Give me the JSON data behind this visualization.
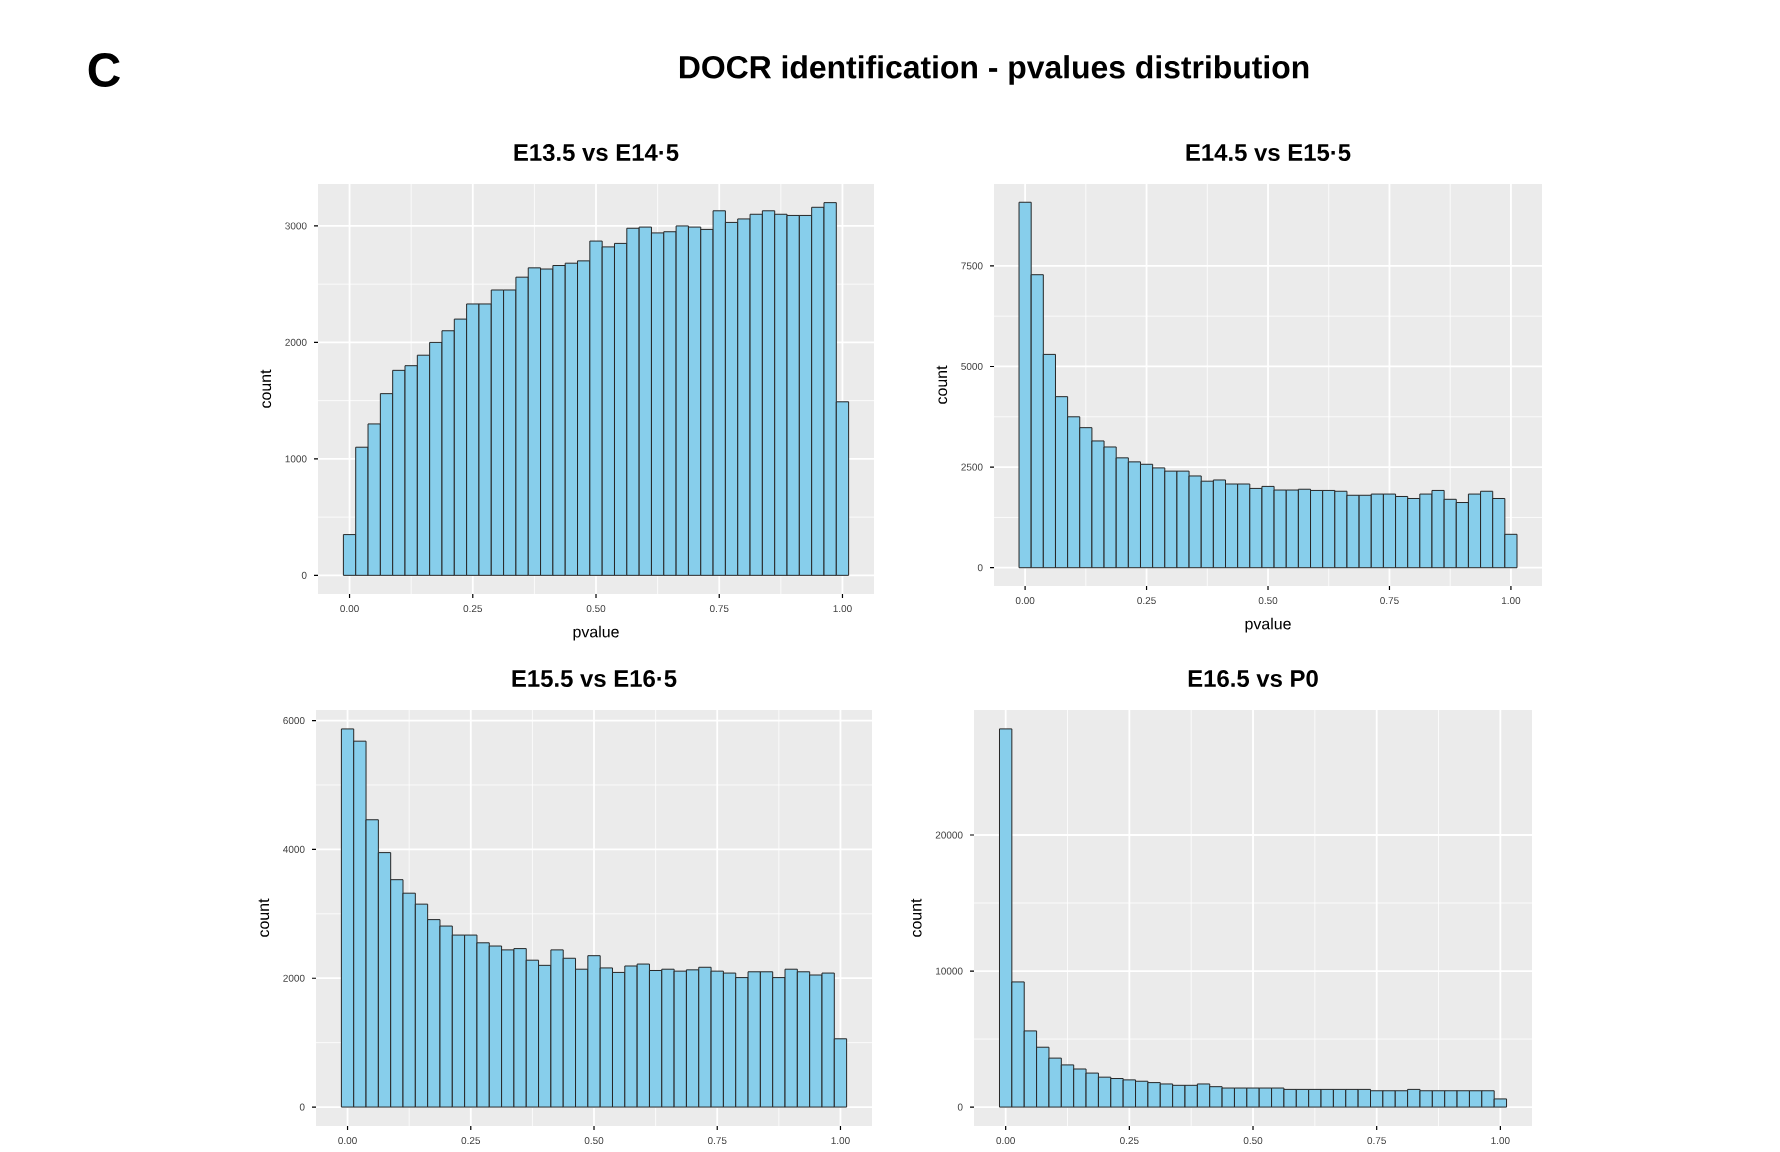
{
  "chart_data": [
    {
      "type": "other",
      "title": "DOCR identification - pvalues distribution",
      "annotations": [
        "C"
      ]
    },
    {
      "type": "histogram",
      "title": "E13.5 vs E14·5",
      "xlabel": "pvalue",
      "ylabel": "count",
      "color": "#87ceeb",
      "grid": true,
      "bins": [
        -0.0125,
        0.0125,
        0.0375,
        0.0625,
        0.0875,
        0.1125,
        0.1375,
        0.1625,
        0.1875,
        0.2125,
        0.2375,
        0.2625,
        0.2875,
        0.3125,
        0.3375,
        0.3625,
        0.3875,
        0.4125,
        0.4375,
        0.4625,
        0.4875,
        0.5125,
        0.5375,
        0.5625,
        0.5875,
        0.6125,
        0.6375,
        0.6625,
        0.6875,
        0.7125,
        0.7375,
        0.7625,
        0.7875,
        0.8125,
        0.8375,
        0.8625,
        0.8875,
        0.9125,
        0.9375,
        0.9625,
        0.9875,
        1.0125
      ],
      "values": [
        350,
        1100,
        1300,
        1560,
        1760,
        1800,
        1890,
        2000,
        2100,
        2200,
        2330,
        2330,
        2450,
        2450,
        2560,
        2640,
        2630,
        2660,
        2680,
        2700,
        2870,
        2820,
        2850,
        2980,
        2990,
        2940,
        2950,
        3000,
        2990,
        2970,
        3130,
        3030,
        3060,
        3100,
        3130,
        3100,
        3090,
        3090,
        3160,
        3200,
        1490
      ],
      "xlim": [
        -0.064,
        1.064
      ],
      "ylim": [
        -160,
        3360
      ],
      "xticks": [
        {
          "value": 0,
          "label": "0.00"
        },
        {
          "value": 0.25,
          "label": "0.25"
        },
        {
          "value": 0.5,
          "label": "0.50"
        },
        {
          "value": 0.75,
          "label": "0.75"
        },
        {
          "value": 1,
          "label": "1.00"
        }
      ],
      "yticks": [
        0,
        1000,
        2000,
        3000
      ]
    },
    {
      "type": "histogram",
      "title": "E14.5 vs E15·5",
      "xlabel": "pvalue",
      "ylabel": "count",
      "color": "#87ceeb",
      "grid": true,
      "bins": [
        -0.0125,
        0.0125,
        0.0375,
        0.0625,
        0.0875,
        0.1125,
        0.1375,
        0.1625,
        0.1875,
        0.2125,
        0.2375,
        0.2625,
        0.2875,
        0.3125,
        0.3375,
        0.3625,
        0.3875,
        0.4125,
        0.4375,
        0.4625,
        0.4875,
        0.5125,
        0.5375,
        0.5625,
        0.5875,
        0.6125,
        0.6375,
        0.6625,
        0.6875,
        0.7125,
        0.7375,
        0.7625,
        0.7875,
        0.8125,
        0.8375,
        0.8625,
        0.8875,
        0.9125,
        0.9375,
        0.9625,
        0.9875,
        1.0125
      ],
      "values": [
        9080,
        7280,
        5300,
        4250,
        3750,
        3480,
        3150,
        3000,
        2730,
        2630,
        2570,
        2480,
        2400,
        2400,
        2280,
        2150,
        2180,
        2080,
        2080,
        1970,
        2020,
        1930,
        1930,
        1950,
        1920,
        1920,
        1900,
        1800,
        1800,
        1830,
        1830,
        1770,
        1720,
        1830,
        1920,
        1700,
        1620,
        1830,
        1900,
        1720,
        830
      ],
      "xlim": [
        -0.064,
        1.064
      ],
      "ylim": [
        -454,
        9534
      ],
      "xticks": [
        {
          "value": 0,
          "label": "0.00"
        },
        {
          "value": 0.25,
          "label": "0.25"
        },
        {
          "value": 0.5,
          "label": "0.50"
        },
        {
          "value": 0.75,
          "label": "0.75"
        },
        {
          "value": 1,
          "label": "1.00"
        }
      ],
      "yticks": [
        0,
        2500,
        5000,
        7500
      ]
    },
    {
      "type": "histogram",
      "title": "E15.5 vs E16·5",
      "ylabel": "count",
      "color": "#87ceeb",
      "grid": true,
      "bins": [
        -0.0125,
        0.0125,
        0.0375,
        0.0625,
        0.0875,
        0.1125,
        0.1375,
        0.1625,
        0.1875,
        0.2125,
        0.2375,
        0.2625,
        0.2875,
        0.3125,
        0.3375,
        0.3625,
        0.3875,
        0.4125,
        0.4375,
        0.4625,
        0.4875,
        0.5125,
        0.5375,
        0.5625,
        0.5875,
        0.6125,
        0.6375,
        0.6625,
        0.6875,
        0.7125,
        0.7375,
        0.7625,
        0.7875,
        0.8125,
        0.8375,
        0.8625,
        0.8875,
        0.9125,
        0.9375,
        0.9625,
        0.9875,
        1.0125
      ],
      "values": [
        5870,
        5680,
        4460,
        3950,
        3530,
        3320,
        3150,
        2910,
        2810,
        2670,
        2670,
        2550,
        2500,
        2440,
        2460,
        2280,
        2200,
        2440,
        2310,
        2140,
        2350,
        2160,
        2090,
        2190,
        2220,
        2120,
        2140,
        2110,
        2130,
        2170,
        2110,
        2080,
        2010,
        2100,
        2100,
        2010,
        2140,
        2100,
        2050,
        2080,
        1060
      ],
      "xlim": [
        -0.064,
        1.064
      ],
      "ylim": [
        -294,
        6164
      ],
      "xticks": [
        {
          "value": 0,
          "label": "0.00"
        },
        {
          "value": 0.25,
          "label": "0.25"
        },
        {
          "value": 0.5,
          "label": "0.50"
        },
        {
          "value": 0.75,
          "label": "0.75"
        },
        {
          "value": 1,
          "label": "1.00"
        }
      ],
      "yticks": [
        0,
        2000,
        4000,
        6000
      ]
    },
    {
      "type": "histogram",
      "title": "E16.5 vs P0",
      "ylabel": "count",
      "color": "#87ceeb",
      "grid": true,
      "bins": [
        -0.0125,
        0.0125,
        0.0375,
        0.0625,
        0.0875,
        0.1125,
        0.1375,
        0.1625,
        0.1875,
        0.2125,
        0.2375,
        0.2625,
        0.2875,
        0.3125,
        0.3375,
        0.3625,
        0.3875,
        0.4125,
        0.4375,
        0.4625,
        0.4875,
        0.5125,
        0.5375,
        0.5625,
        0.5875,
        0.6125,
        0.6375,
        0.6625,
        0.6875,
        0.7125,
        0.7375,
        0.7625,
        0.7875,
        0.8125,
        0.8375,
        0.8625,
        0.8875,
        0.9125,
        0.9375,
        0.9625,
        0.9875,
        1.0125
      ],
      "values": [
        27800,
        9200,
        5600,
        4400,
        3600,
        3100,
        2800,
        2500,
        2200,
        2100,
        2000,
        1900,
        1800,
        1700,
        1600,
        1600,
        1700,
        1500,
        1400,
        1400,
        1400,
        1400,
        1400,
        1300,
        1300,
        1300,
        1300,
        1300,
        1300,
        1300,
        1200,
        1200,
        1200,
        1300,
        1200,
        1200,
        1200,
        1200,
        1200,
        1200,
        600
      ],
      "xlim": [
        -0.064,
        1.064
      ],
      "ylim": [
        -1390,
        29190
      ],
      "xticks": [
        {
          "value": 0,
          "label": "0.00"
        },
        {
          "value": 0.25,
          "label": "0.25"
        },
        {
          "value": 0.5,
          "label": "0.50"
        },
        {
          "value": 0.75,
          "label": "0.75"
        },
        {
          "value": 1,
          "label": "1.00"
        }
      ],
      "yticks": [
        0,
        10000,
        20000
      ]
    }
  ]
}
